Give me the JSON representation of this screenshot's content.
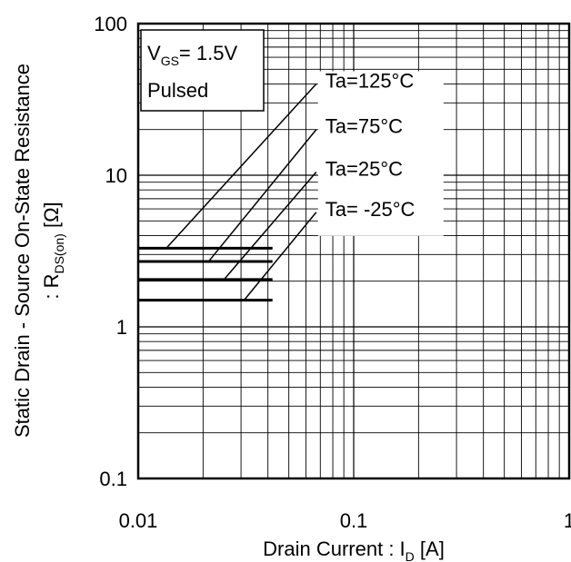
{
  "chart_data": {
    "type": "line",
    "x_scale": "log",
    "y_scale": "log",
    "xlim": [
      0.01,
      1
    ],
    "ylim": [
      0.1,
      100
    ],
    "grid": true,
    "x_ticks": [
      "0.01",
      "0.1",
      "1"
    ],
    "y_ticks": [
      "100",
      "10",
      "1",
      "0.1"
    ],
    "xlabel": {
      "main": "Drain Current : I",
      "sub": "D",
      "unit": " [A]"
    },
    "ylabel": {
      "line1": "Static Drain - Source On-State Resistance",
      "line2_prefix": ": R",
      "line2_sub": "DS(on)",
      "line2_unit": " [Ω]"
    },
    "condition": {
      "vgs_main": "V",
      "vgs_sub": "GS",
      "vgs_value": "= 1.5V",
      "mode": "Pulsed"
    },
    "series": [
      {
        "name": "Ta=125°C",
        "x": [
          0.01,
          0.042
        ],
        "y": [
          3.3,
          3.3
        ]
      },
      {
        "name": "Ta=75°C",
        "x": [
          0.01,
          0.042
        ],
        "y": [
          2.7,
          2.7
        ]
      },
      {
        "name": "Ta=25°C",
        "x": [
          0.01,
          0.042
        ],
        "y": [
          2.05,
          2.05
        ]
      },
      {
        "name": "Ta= -25°C",
        "x": [
          0.01,
          0.042
        ],
        "y": [
          1.5,
          1.5
        ]
      }
    ],
    "annotations": [
      {
        "label": "Ta=125°C",
        "from": [
          0.0135,
          3.3
        ],
        "to": [
          0.067,
          40
        ]
      },
      {
        "label": "Ta=75°C",
        "from": [
          0.021,
          2.65
        ],
        "to": [
          0.067,
          20
        ]
      },
      {
        "label": "Ta=25°C",
        "from": [
          0.025,
          2.05
        ],
        "to": [
          0.067,
          10.5
        ]
      },
      {
        "label": "Ta= -25°C",
        "from": [
          0.031,
          1.5
        ],
        "to": [
          0.067,
          5.7
        ]
      }
    ]
  }
}
